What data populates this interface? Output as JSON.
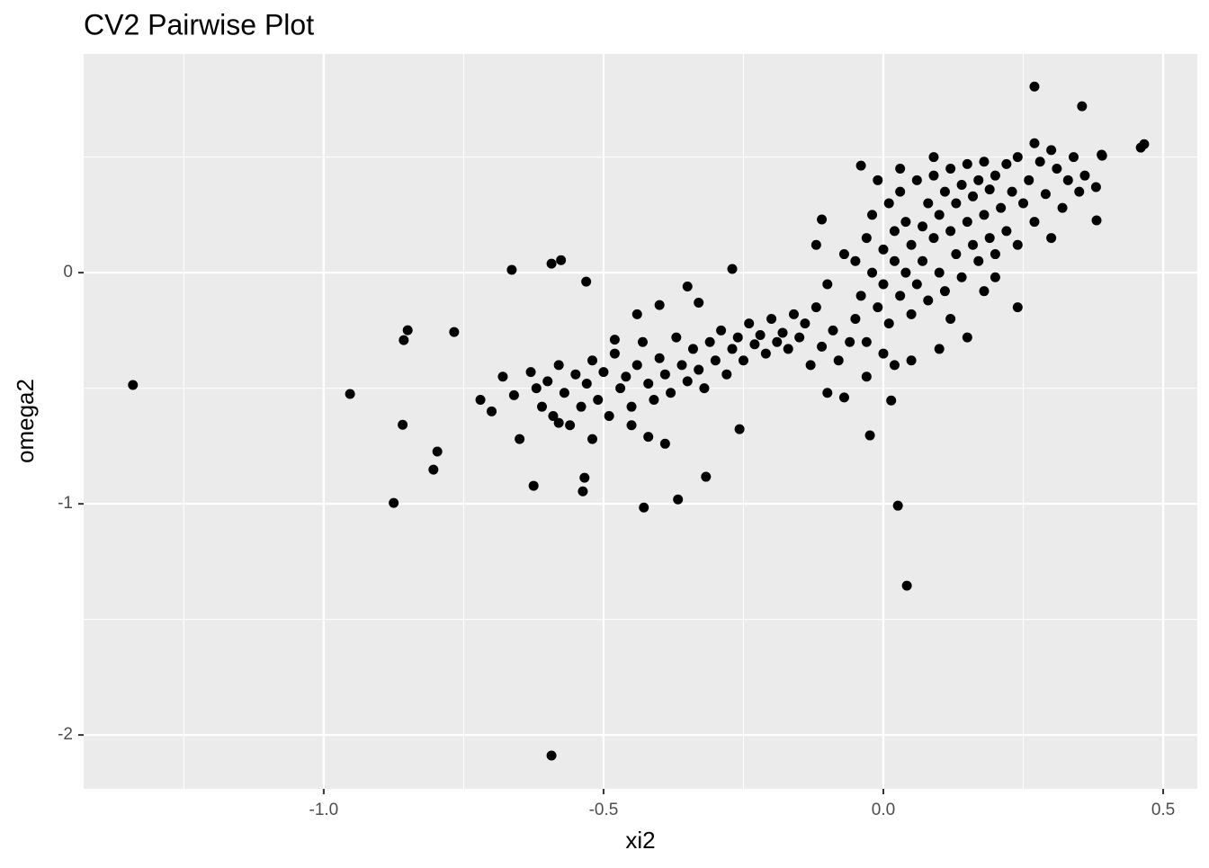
{
  "chart_data": {
    "type": "scatter",
    "title": "CV2 Pairwise Plot",
    "x_label": "xi2",
    "y_label": "omega2",
    "color": "#000000",
    "grid": true,
    "xlim": [
      -1.429,
      0.561
    ],
    "ylim": [
      -2.233,
      0.946
    ],
    "xticks": [
      {
        "value": -1,
        "label": "-1.0"
      },
      -0.5,
      {
        "value": 0,
        "label": "0.0"
      },
      0.5
    ],
    "yticks": [
      -2,
      -1,
      0
    ],
    "x_minor_ticks": [
      -1.25,
      -0.75,
      -0.25,
      0.25
    ],
    "y_minor_ticks": [
      -1.5,
      -0.5,
      0.5
    ],
    "x": [
      -1.341,
      -0.953,
      -0.875,
      -0.859,
      -0.857,
      -0.85,
      -0.804,
      -0.797,
      -0.767,
      -0.664,
      -0.593,
      -0.576,
      -0.531,
      -0.593,
      -0.625,
      -0.537,
      -0.534,
      -0.428,
      -0.367,
      -0.317,
      -0.27,
      0.026,
      0.042,
      0.27,
      0.355,
      0.466,
      0.46,
      -0.04,
      0.391,
      0.381,
      -0.024,
      0.014,
      -0.257,
      -0.72,
      -0.7,
      -0.68,
      -0.66,
      -0.65,
      -0.63,
      -0.62,
      -0.61,
      -0.6,
      -0.59,
      -0.58,
      -0.57,
      -0.56,
      -0.55,
      -0.54,
      -0.53,
      -0.52,
      -0.51,
      -0.5,
      -0.49,
      -0.48,
      -0.47,
      -0.46,
      -0.45,
      -0.44,
      -0.43,
      -0.42,
      -0.41,
      -0.4,
      -0.39,
      -0.38,
      -0.37,
      -0.36,
      -0.35,
      -0.34,
      -0.33,
      -0.32,
      -0.31,
      -0.3,
      -0.29,
      -0.28,
      -0.27,
      -0.26,
      -0.25,
      -0.24,
      -0.23,
      -0.22,
      -0.21,
      -0.2,
      -0.19,
      -0.18,
      -0.17,
      -0.16,
      -0.15,
      -0.14,
      -0.13,
      -0.12,
      -0.11,
      -0.1,
      -0.09,
      -0.08,
      -0.07,
      -0.45,
      -0.52,
      -0.42,
      -0.39,
      -0.58,
      -0.48,
      -0.44,
      -0.4,
      -0.35,
      -0.33,
      -0.1,
      -0.07,
      -0.11,
      -0.12,
      -0.05,
      -0.05,
      -0.04,
      -0.03,
      -0.03,
      -0.02,
      -0.02,
      -0.01,
      0.0,
      0.0,
      0.01,
      0.01,
      0.02,
      0.02,
      0.03,
      0.03,
      0.04,
      0.04,
      0.05,
      0.05,
      0.06,
      0.06,
      0.07,
      0.07,
      0.08,
      0.08,
      0.09,
      0.09,
      0.1,
      0.1,
      0.11,
      0.11,
      0.12,
      0.12,
      0.13,
      0.13,
      0.14,
      0.14,
      0.15,
      0.15,
      0.16,
      0.16,
      0.17,
      0.17,
      0.18,
      0.18,
      0.19,
      0.19,
      0.2,
      0.2,
      0.21,
      0.22,
      0.22,
      0.23,
      0.24,
      0.24,
      0.25,
      0.26,
      0.27,
      0.28,
      0.29,
      0.3,
      0.31,
      0.32,
      0.33,
      0.34,
      0.35,
      0.36,
      0.38,
      0.39,
      0.3,
      0.27,
      0.24,
      0.18,
      0.15,
      0.1,
      0.05,
      0.02,
      -0.03,
      -0.01,
      0.03,
      0.09,
      0.0,
      -0.06,
      0.12,
      0.2
    ],
    "values": [
      -0.486,
      -0.525,
      -0.996,
      -0.658,
      -0.292,
      -0.249,
      -0.852,
      -0.774,
      -0.257,
      0.012,
      0.039,
      0.054,
      -0.039,
      -2.089,
      -0.922,
      -0.946,
      -0.887,
      -1.016,
      -0.981,
      -0.883,
      0.016,
      -1.008,
      -1.354,
      0.805,
      0.72,
      0.556,
      0.541,
      0.463,
      0.506,
      0.226,
      -0.704,
      -0.553,
      -0.677,
      -0.55,
      -0.6,
      -0.45,
      -0.53,
      -0.72,
      -0.43,
      -0.5,
      -0.58,
      -0.47,
      -0.62,
      -0.4,
      -0.52,
      -0.66,
      -0.44,
      -0.58,
      -0.48,
      -0.38,
      -0.55,
      -0.43,
      -0.62,
      -0.35,
      -0.5,
      -0.45,
      -0.58,
      -0.4,
      -0.3,
      -0.48,
      -0.55,
      -0.37,
      -0.44,
      -0.52,
      -0.28,
      -0.4,
      -0.47,
      -0.33,
      -0.42,
      -0.5,
      -0.3,
      -0.38,
      -0.25,
      -0.44,
      -0.33,
      -0.28,
      -0.38,
      -0.22,
      -0.31,
      -0.27,
      -0.35,
      -0.2,
      -0.3,
      -0.26,
      -0.33,
      -0.18,
      -0.28,
      -0.22,
      -0.4,
      -0.15,
      -0.32,
      -0.05,
      -0.25,
      -0.38,
      0.08,
      -0.66,
      -0.72,
      -0.71,
      -0.74,
      -0.65,
      -0.29,
      -0.18,
      -0.14,
      -0.06,
      -0.13,
      -0.52,
      -0.54,
      0.23,
      0.12,
      -0.2,
      0.05,
      -0.1,
      0.15,
      -0.3,
      0.0,
      0.25,
      -0.15,
      0.1,
      -0.05,
      0.3,
      -0.22,
      0.05,
      0.18,
      -0.1,
      0.35,
      0.0,
      0.22,
      -0.18,
      0.12,
      0.4,
      -0.05,
      0.2,
      0.05,
      0.3,
      -0.12,
      0.15,
      0.42,
      0.0,
      0.25,
      0.35,
      -0.08,
      0.18,
      0.45,
      0.08,
      0.3,
      0.38,
      -0.02,
      0.22,
      0.47,
      0.12,
      0.33,
      0.4,
      0.05,
      0.25,
      0.48,
      0.15,
      0.36,
      0.42,
      0.08,
      0.28,
      0.47,
      0.18,
      0.35,
      0.12,
      0.5,
      0.3,
      0.4,
      0.22,
      0.48,
      0.34,
      0.15,
      0.45,
      0.28,
      0.4,
      0.5,
      0.35,
      0.42,
      0.37,
      0.51,
      0.53,
      0.56,
      -0.15,
      -0.08,
      -0.28,
      -0.33,
      -0.38,
      -0.4,
      -0.45,
      0.4,
      0.45,
      0.5,
      -0.35,
      -0.3,
      -0.2,
      -0.02
    ]
  }
}
